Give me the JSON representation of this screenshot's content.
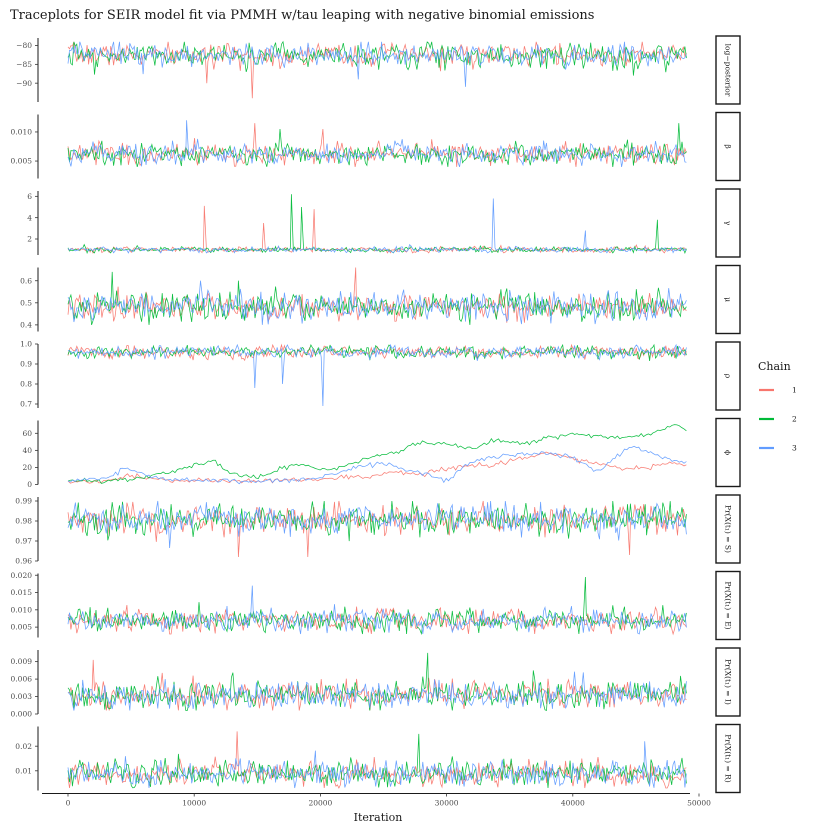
{
  "chart_data": {
    "type": "line",
    "title": "Traceplots for SEIR model fit via PMMH w/tau leaping with negative binomial emissions",
    "xlabel": "Iteration",
    "xlim": [
      0,
      49000
    ],
    "x_ticks": [
      0,
      10000,
      20000,
      30000,
      40000,
      50000
    ],
    "x_tick_labels": [
      "0",
      "10000",
      "20000",
      "30000",
      "40000",
      "50000"
    ],
    "legend": {
      "title": "Chain",
      "position": "right",
      "entries": [
        {
          "label": "1",
          "color": "#F8766D"
        },
        {
          "label": "2",
          "color": "#00BA38"
        },
        {
          "label": "3",
          "color": "#619CFF"
        }
      ]
    },
    "grid": false,
    "panels": [
      {
        "strip": "log−posterior",
        "ylim": [
          -95,
          -78
        ],
        "y_ticks": [
          -90,
          -85,
          -80
        ],
        "y_tick_labels": [
          "−90",
          "−85",
          "−80"
        ],
        "series": [
          {
            "name": "1",
            "mean": -82.5,
            "range": [
              -94,
              -79
            ],
            "spikes": [
              [
                14600,
                -94
              ],
              [
                11000,
                -90
              ]
            ]
          },
          {
            "name": "2",
            "mean": -82.7,
            "range": [
              -90,
              -79
            ],
            "spikes": []
          },
          {
            "name": "3",
            "mean": -82.5,
            "range": [
              -91,
              -79
            ],
            "spikes": [
              [
                31500,
                -91
              ],
              [
                23000,
                -89
              ]
            ]
          }
        ]
      },
      {
        "strip": "β",
        "ylim": [
          0.002,
          0.013
        ],
        "y_ticks": [
          0.005,
          0.01
        ],
        "y_tick_labels": [
          "0.005",
          "0.010"
        ],
        "series": [
          {
            "name": "1",
            "mean": 0.0062,
            "range": [
              0.004,
              0.0115
            ],
            "spikes": [
              [
                14800,
                0.0115
              ],
              [
                20200,
                0.0105
              ]
            ]
          },
          {
            "name": "2",
            "mean": 0.0062,
            "range": [
              0.004,
              0.0115
            ],
            "spikes": [
              [
                48400,
                0.0115
              ],
              [
                16800,
                0.0105
              ]
            ]
          },
          {
            "name": "3",
            "mean": 0.0062,
            "range": [
              0.004,
              0.012
            ],
            "spikes": [
              [
                9400,
                0.012
              ]
            ]
          }
        ]
      },
      {
        "strip": "γ",
        "ylim": [
          0.5,
          6.5
        ],
        "y_ticks": [
          2,
          4,
          6
        ],
        "y_tick_labels": [
          "2",
          "4",
          "6"
        ],
        "series": [
          {
            "name": "1",
            "mean": 1.0,
            "range": [
              0.7,
              5.1
            ],
            "spikes": [
              [
                10800,
                5.1
              ],
              [
                19500,
                4.8
              ],
              [
                15500,
                3.5
              ]
            ]
          },
          {
            "name": "2",
            "mean": 1.0,
            "range": [
              0.7,
              6.2
            ],
            "spikes": [
              [
                17700,
                6.2
              ],
              [
                18500,
                5.0
              ],
              [
                46700,
                3.8
              ]
            ]
          },
          {
            "name": "3",
            "mean": 1.0,
            "range": [
              0.7,
              5.8
            ],
            "spikes": [
              [
                33700,
                5.8
              ],
              [
                41000,
                2.8
              ]
            ]
          }
        ]
      },
      {
        "strip": "μ",
        "ylim": [
          0.37,
          0.66
        ],
        "y_ticks": [
          0.4,
          0.5,
          0.6
        ],
        "y_tick_labels": [
          "0.4",
          "0.5",
          "0.6"
        ],
        "series": [
          {
            "name": "1",
            "mean": 0.48,
            "range": [
              0.41,
              0.66
            ],
            "spikes": [
              [
                22800,
                0.66
              ]
            ]
          },
          {
            "name": "2",
            "mean": 0.48,
            "range": [
              0.4,
              0.65
            ],
            "spikes": [
              [
                3500,
                0.64
              ],
              [
                13500,
                0.6
              ]
            ]
          },
          {
            "name": "3",
            "mean": 0.48,
            "range": [
              0.4,
              0.6
            ],
            "spikes": []
          }
        ]
      },
      {
        "strip": "ρ",
        "ylim": [
          0.68,
          1.0
        ],
        "y_ticks": [
          0.7,
          0.8,
          0.9,
          1.0
        ],
        "y_tick_labels": [
          "0.7",
          "0.8",
          "0.9",
          "1.0"
        ],
        "series": [
          {
            "name": "1",
            "mean": 0.96,
            "range": [
              0.82,
              0.995
            ],
            "spikes": []
          },
          {
            "name": "2",
            "mean": 0.96,
            "range": [
              0.82,
              0.995
            ],
            "spikes": []
          },
          {
            "name": "3",
            "mean": 0.96,
            "range": [
              0.69,
              0.995
            ],
            "spikes": [
              [
                20200,
                0.69
              ],
              [
                14800,
                0.78
              ],
              [
                17000,
                0.8
              ]
            ]
          }
        ]
      },
      {
        "strip": "ϕ",
        "ylim": [
          0,
          75
        ],
        "y_ticks": [
          0,
          20,
          40,
          60
        ],
        "y_tick_labels": [
          "0",
          "20",
          "40",
          "60"
        ],
        "series": [
          {
            "name": "1",
            "x": [
              0,
              3000,
              5000,
              8000,
              10000,
              14000,
              17000,
              20000,
              24000,
              26000,
              28000,
              30000,
              32000,
              34000,
              36000,
              38000,
              40000,
              42000,
              44000,
              46000,
              48000,
              49000
            ],
            "y": [
              4,
              4,
              10,
              5,
              5,
              4,
              5,
              6,
              10,
              15,
              12,
              18,
              22,
              24,
              30,
              38,
              30,
              24,
              18,
              20,
              27,
              20
            ]
          },
          {
            "name": "2",
            "x": [
              0,
              4000,
              6000,
              8000,
              10000,
              11500,
              13000,
              15000,
              17000,
              18500,
              20000,
              22000,
              24000,
              26000,
              28000,
              30000,
              32000,
              34000,
              36000,
              38000,
              40000,
              42000,
              44000,
              46000,
              47000,
              48000,
              49000
            ],
            "y": [
              4,
              5,
              8,
              14,
              22,
              28,
              12,
              8,
              20,
              24,
              18,
              22,
              32,
              38,
              50,
              48,
              42,
              52,
              48,
              55,
              60,
              56,
              54,
              58,
              64,
              72,
              66
            ]
          },
          {
            "name": "3",
            "x": [
              0,
              3000,
              4500,
              6000,
              8000,
              10000,
              14000,
              18000,
              20000,
              23000,
              25000,
              27000,
              29000,
              30000,
              32000,
              34000,
              36000,
              38000,
              40000,
              42000,
              44000,
              45000,
              47000,
              49000
            ],
            "y": [
              4,
              8,
              18,
              12,
              6,
              5,
              4,
              5,
              8,
              22,
              24,
              18,
              10,
              4,
              28,
              32,
              36,
              36,
              32,
              16,
              38,
              44,
              32,
              24
            ]
          }
        ]
      },
      {
        "strip": "Pr(X(t₁) = S)",
        "ylim": [
          0.96,
          0.992
        ],
        "y_ticks": [
          0.96,
          0.97,
          0.98,
          0.99
        ],
        "y_tick_labels": [
          "0.96",
          "0.97",
          "0.98",
          "0.99"
        ],
        "series": [
          {
            "name": "1",
            "mean": 0.981,
            "range": [
              0.962,
              0.99
            ],
            "spikes": [
              [
                13500,
                0.962
              ],
              [
                19000,
                0.962
              ],
              [
                44500,
                0.963
              ]
            ]
          },
          {
            "name": "2",
            "mean": 0.981,
            "range": [
              0.966,
              0.99
            ],
            "spikes": []
          },
          {
            "name": "3",
            "mean": 0.981,
            "range": [
              0.966,
              0.99
            ],
            "spikes": []
          }
        ]
      },
      {
        "strip": "Pr(X(t₁) = E)",
        "ylim": [
          0.002,
          0.0205
        ],
        "y_ticks": [
          0.005,
          0.01,
          0.015,
          0.02
        ],
        "y_tick_labels": [
          "0.005",
          "0.010",
          "0.015",
          "0.020"
        ],
        "series": [
          {
            "name": "1",
            "mean": 0.0068,
            "range": [
              0.003,
              0.015
            ],
            "spikes": []
          },
          {
            "name": "2",
            "mean": 0.0068,
            "range": [
              0.003,
              0.0195
            ],
            "spikes": [
              [
                41000,
                0.0195
              ]
            ]
          },
          {
            "name": "3",
            "mean": 0.0068,
            "range": [
              0.003,
              0.018
            ],
            "spikes": [
              [
                14600,
                0.017
              ]
            ]
          }
        ]
      },
      {
        "strip": "Pr(X(t₁) = I)",
        "ylim": [
          0,
          0.011
        ],
        "y_ticks": [
          0,
          0.003,
          0.006,
          0.009
        ],
        "y_tick_labels": [
          "0.000",
          "0.003",
          "0.006",
          "0.009"
        ],
        "series": [
          {
            "name": "1",
            "mean": 0.0033,
            "range": [
              0.0006,
              0.0095
            ],
            "spikes": [
              [
                2000,
                0.0093
              ]
            ]
          },
          {
            "name": "2",
            "mean": 0.0033,
            "range": [
              0.0006,
              0.0105
            ],
            "spikes": [
              [
                28500,
                0.0105
              ]
            ]
          },
          {
            "name": "3",
            "mean": 0.0033,
            "range": [
              0.0006,
              0.0095
            ],
            "spikes": []
          }
        ]
      },
      {
        "strip": "Pr(X(t₁) = R)",
        "ylim": [
          0.002,
          0.028
        ],
        "y_ticks": [
          0.01,
          0.02
        ],
        "y_tick_labels": [
          "0.01",
          "0.02"
        ],
        "series": [
          {
            "name": "1",
            "mean": 0.009,
            "range": [
              0.003,
              0.026
            ],
            "spikes": [
              [
                13400,
                0.026
              ]
            ]
          },
          {
            "name": "2",
            "mean": 0.009,
            "range": [
              0.003,
              0.025
            ],
            "spikes": [
              [
                27800,
                0.025
              ]
            ]
          },
          {
            "name": "3",
            "mean": 0.009,
            "range": [
              0.003,
              0.022
            ],
            "spikes": [
              [
                45700,
                0.022
              ]
            ]
          }
        ]
      }
    ]
  }
}
